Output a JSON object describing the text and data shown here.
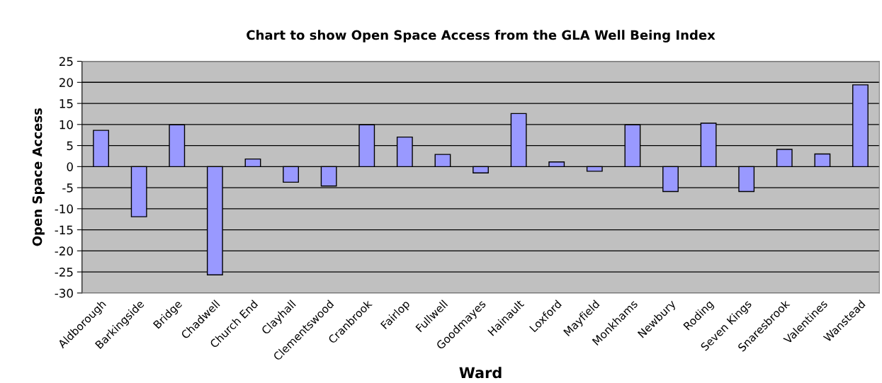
{
  "chart_data": {
    "type": "bar",
    "title": "Chart to show Open Space Access from the GLA Well Being Index",
    "xlabel": "Ward",
    "ylabel": "Open Space Access",
    "categories": [
      "Aldborough",
      "Barkingside",
      "Bridge",
      "Chadwell",
      "Church End",
      "Clayhall",
      "Clementswood",
      "Cranbrook",
      "Fairlop",
      "Fullwell",
      "Goodmayes",
      "Hainault",
      "Loxford",
      "Mayfield",
      "Monkhams",
      "Newbury",
      "Roding",
      "Seven Kings",
      "Snaresbrook",
      "Valentines",
      "Wanstead"
    ],
    "values": [
      8.6,
      -11.9,
      9.9,
      -25.7,
      1.8,
      -3.7,
      -4.6,
      9.9,
      7.0,
      2.9,
      -1.5,
      12.6,
      1.1,
      -1.1,
      9.9,
      -5.9,
      10.3,
      -5.9,
      4.1,
      3.0,
      19.4
    ],
    "color": "#9999ff",
    "ylim": [
      -30,
      25
    ],
    "yticks": [
      -30,
      -25,
      -20,
      -15,
      -10,
      -5,
      0,
      5,
      10,
      15,
      20,
      25
    ],
    "grid": "y"
  }
}
